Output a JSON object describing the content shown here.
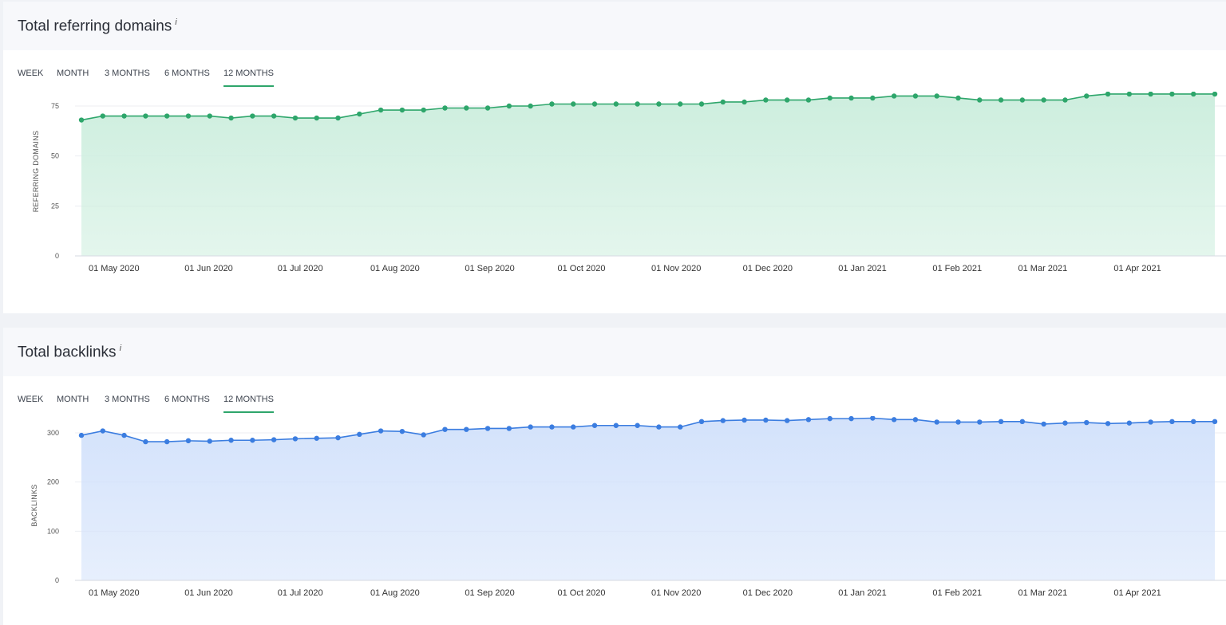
{
  "tabs": [
    "WEEK",
    "MONTH",
    "3 MONTHS",
    "6 MONTHS",
    "12 MONTHS"
  ],
  "active_tab": "12 MONTHS",
  "info_mark": "i",
  "charts": {
    "referring": {
      "title": "Total referring domains",
      "ylabel": "REFERRING DOMAINS",
      "accent": "#2ea66b",
      "fill": "#cdeede"
    },
    "backlinks": {
      "title": "Total backlinks",
      "ylabel": "BACKLINKS",
      "accent": "#3b7de0",
      "fill": "#d3e2fb"
    }
  },
  "chart_data": [
    {
      "type": "area",
      "title": "Total referring domains",
      "ylabel": "REFERRING DOMAINS",
      "ylim": [
        0,
        75
      ],
      "yticks": [
        0,
        25,
        50,
        75
      ],
      "grid": true,
      "x_tick_labels": [
        "01 May 2020",
        "01 Jun 2020",
        "01 Jul 2020",
        "01 Aug 2020",
        "01 Sep 2020",
        "01 Oct 2020",
        "01 Nov 2020",
        "01 Dec 2020",
        "01 Jan 2021",
        "01 Feb 2021",
        "01 Mar 2021",
        "01 Apr 2021"
      ],
      "x_tick_pos": [
        1.0,
        5.43,
        9.71,
        14.14,
        18.57,
        22.86,
        27.29,
        31.57,
        36.0,
        40.43,
        44.43,
        48.86
      ],
      "values": [
        68,
        70,
        70,
        70,
        70,
        70,
        70,
        69,
        70,
        70,
        69,
        69,
        69,
        71,
        73,
        73,
        73,
        74,
        74,
        74,
        75,
        75,
        76,
        76,
        76,
        76,
        76,
        76,
        76,
        76,
        77,
        77,
        78,
        78,
        78,
        79,
        79,
        79,
        80,
        80,
        80,
        79,
        78,
        78,
        78,
        78,
        78,
        80,
        81,
        81,
        81,
        81,
        81,
        81
      ]
    },
    {
      "type": "area",
      "title": "Total backlinks",
      "ylabel": "BACKLINKS",
      "ylim": [
        0,
        300
      ],
      "yticks": [
        0,
        100,
        200,
        300
      ],
      "grid": true,
      "x_tick_labels": [
        "01 May 2020",
        "01 Jun 2020",
        "01 Jul 2020",
        "01 Aug 2020",
        "01 Sep 2020",
        "01 Oct 2020",
        "01 Nov 2020",
        "01 Dec 2020",
        "01 Jan 2021",
        "01 Feb 2021",
        "01 Mar 2021",
        "01 Apr 2021"
      ],
      "x_tick_pos": [
        1.0,
        5.43,
        9.71,
        14.14,
        18.57,
        22.86,
        27.29,
        31.57,
        36.0,
        40.43,
        44.43,
        48.86
      ],
      "values": [
        295,
        304,
        295,
        282,
        282,
        284,
        283,
        285,
        285,
        286,
        288,
        289,
        290,
        297,
        304,
        303,
        296,
        307,
        307,
        309,
        309,
        312,
        312,
        312,
        315,
        315,
        315,
        312,
        312,
        323,
        325,
        326,
        326,
        325,
        327,
        329,
        329,
        330,
        327,
        327,
        322,
        322,
        322,
        323,
        323,
        318,
        320,
        321,
        319,
        320,
        322,
        323,
        323,
        323
      ]
    }
  ]
}
